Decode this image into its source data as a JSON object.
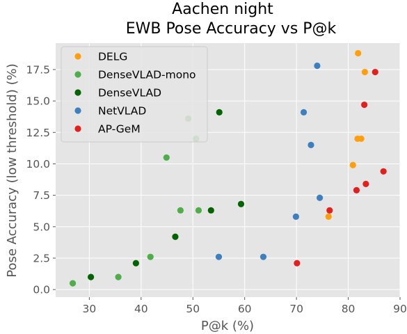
{
  "chart_data": {
    "type": "scatter",
    "title": "Aachen night",
    "subtitle": "EWB Pose Accuracy vs P@k",
    "xlabel": "P@k (%)",
    "ylabel": "Pose Accuracy (low threshold) (%)",
    "xlim": [
      23.5,
      90
    ],
    "ylim": [
      -0.6,
      19.6
    ],
    "xticks": [
      30,
      40,
      50,
      60,
      70,
      80,
      90
    ],
    "yticks": [
      0.0,
      2.5,
      5.0,
      7.5,
      10.0,
      12.5,
      15.0,
      17.5
    ],
    "ytick_labels": [
      "0.0",
      "2.5",
      "5.0",
      "7.5",
      "10.0",
      "12.5",
      "15.0",
      "17.5"
    ],
    "grid": true,
    "legend_position": "top-left",
    "series": [
      {
        "name": "DELG",
        "color": "#ff9f0e",
        "points": [
          [
            81.9,
            18.8
          ],
          [
            83.2,
            17.3
          ],
          [
            81.8,
            12.0
          ],
          [
            82.5,
            12.0
          ],
          [
            80.9,
            9.9
          ],
          [
            76.2,
            5.8
          ]
        ]
      },
      {
        "name": "DenseVLAD-mono",
        "color": "#4fae4a",
        "points": [
          [
            49.1,
            13.6
          ],
          [
            50.6,
            12.0
          ],
          [
            44.9,
            10.5
          ],
          [
            47.6,
            6.3
          ],
          [
            51.1,
            6.3
          ],
          [
            41.8,
            2.6
          ],
          [
            35.6,
            1.0
          ],
          [
            26.8,
            0.5
          ]
        ]
      },
      {
        "name": "DenseVLAD",
        "color": "#016401",
        "points": [
          [
            55.1,
            14.1
          ],
          [
            59.3,
            6.8
          ],
          [
            53.5,
            6.3
          ],
          [
            46.6,
            4.2
          ],
          [
            39.0,
            2.1
          ],
          [
            30.3,
            1.0
          ]
        ]
      },
      {
        "name": "NetVLAD",
        "color": "#3e7fbf",
        "points": [
          [
            74.0,
            17.8
          ],
          [
            71.4,
            14.1
          ],
          [
            72.8,
            11.5
          ],
          [
            74.5,
            7.3
          ],
          [
            69.9,
            5.8
          ],
          [
            55.0,
            2.6
          ],
          [
            63.6,
            2.6
          ]
        ]
      },
      {
        "name": "AP-GeM",
        "color": "#e2211f",
        "points": [
          [
            85.2,
            17.3
          ],
          [
            83.1,
            14.7
          ],
          [
            86.8,
            9.4
          ],
          [
            83.4,
            8.4
          ],
          [
            81.6,
            7.9
          ],
          [
            76.4,
            6.3
          ],
          [
            70.1,
            2.1
          ]
        ]
      }
    ]
  }
}
